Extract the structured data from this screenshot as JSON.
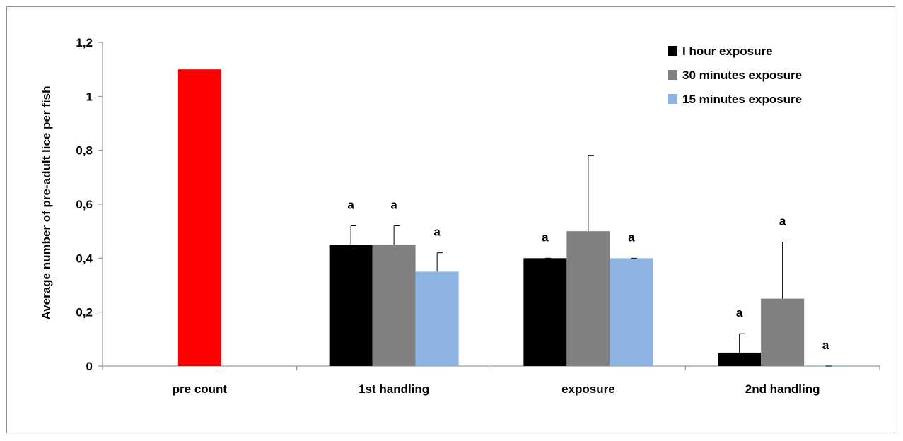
{
  "chart_data": {
    "type": "bar",
    "title": "",
    "xlabel": "",
    "ylabel": "Average number of pre-adult lice per fish",
    "ylim": [
      0,
      1.2
    ],
    "yticks": [
      {
        "value": 0,
        "label": "0"
      },
      {
        "value": 0.2,
        "label": "0,2"
      },
      {
        "value": 0.4,
        "label": "0,4"
      },
      {
        "value": 0.6,
        "label": "0,6"
      },
      {
        "value": 0.8,
        "label": "0,8"
      },
      {
        "value": 1.0,
        "label": "1"
      },
      {
        "value": 1.2,
        "label": "1,2"
      }
    ],
    "grid": false,
    "legend": "top-right",
    "categories": [
      "pre count",
      "1st handling",
      "exposure",
      "2nd handling"
    ],
    "baseline": {
      "category": "pre count",
      "value": 1.1,
      "color": "#ff0000"
    },
    "series": [
      {
        "name": "I hour exposure",
        "color": "#000000",
        "values": [
          null,
          0.45,
          0.4,
          0.05
        ],
        "errors": [
          null,
          0.07,
          0.0,
          0.07
        ],
        "labels": [
          null,
          "a",
          "a",
          "a"
        ]
      },
      {
        "name": "30 minutes exposure",
        "color": "#808080",
        "values": [
          null,
          0.45,
          0.5,
          0.25
        ],
        "errors": [
          null,
          0.07,
          0.28,
          0.21
        ],
        "labels": [
          null,
          "a",
          "",
          "a"
        ]
      },
      {
        "name": "15 minutes exposure",
        "color": "#8db4e2",
        "values": [
          null,
          0.35,
          0.4,
          0.0
        ],
        "errors": [
          null,
          0.07,
          0.0,
          0.0
        ],
        "labels": [
          null,
          "a",
          "a",
          "a"
        ]
      }
    ]
  }
}
